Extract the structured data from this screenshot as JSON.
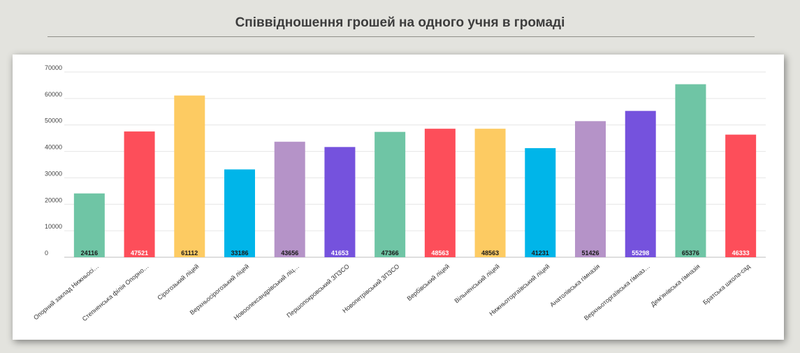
{
  "header": {
    "title": "Співвідношення грошей на одного учня в громаді"
  },
  "chart_data": {
    "type": "bar",
    "title": "",
    "xlabel": "",
    "ylabel": "",
    "ylim": [
      0,
      70000
    ],
    "yticks": [
      0,
      10000,
      20000,
      30000,
      40000,
      50000,
      60000,
      70000
    ],
    "grid": true,
    "categories": [
      "Опорний заклад Нижньосі…",
      "Степненська філія Опорно…",
      "Сірогозький ліцей",
      "Верхньосірогозький ліцей",
      "Новоолександрівський ліц…",
      "Першопокровський ЗПЗСО",
      "Новопетрівський ЗПЗСО",
      "Вербівський ліцей",
      "Вільненський ліцей",
      "Нижньоторгаївський ліцей",
      "Анатолівська гімназія",
      "Верхньоторгаївська гімназ…",
      "Дем'янівська гімназія",
      "Братська школа-сад"
    ],
    "values": [
      24116,
      47521,
      61112,
      33186,
      43656,
      41653,
      47366,
      48563,
      48563,
      41231,
      51426,
      55298,
      65376,
      46333
    ],
    "bar_colors": [
      "#6fc5a5",
      "#fd4e5a",
      "#fdcb62",
      "#00b5e9",
      "#b593c8",
      "#7552dd",
      "#6fc5a5",
      "#fd4e5a",
      "#fdcb62",
      "#00b5e9",
      "#b593c8",
      "#7552dd",
      "#6fc5a5",
      "#fd4e5a"
    ],
    "label_colors": [
      "#1a1a1a",
      "#ffffff",
      "#1a1a1a",
      "#1a1a1a",
      "#1a1a1a",
      "#ffffff",
      "#1a1a1a",
      "#ffffff",
      "#1a1a1a",
      "#1a1a1a",
      "#1a1a1a",
      "#ffffff",
      "#1a1a1a",
      "#ffffff"
    ]
  }
}
